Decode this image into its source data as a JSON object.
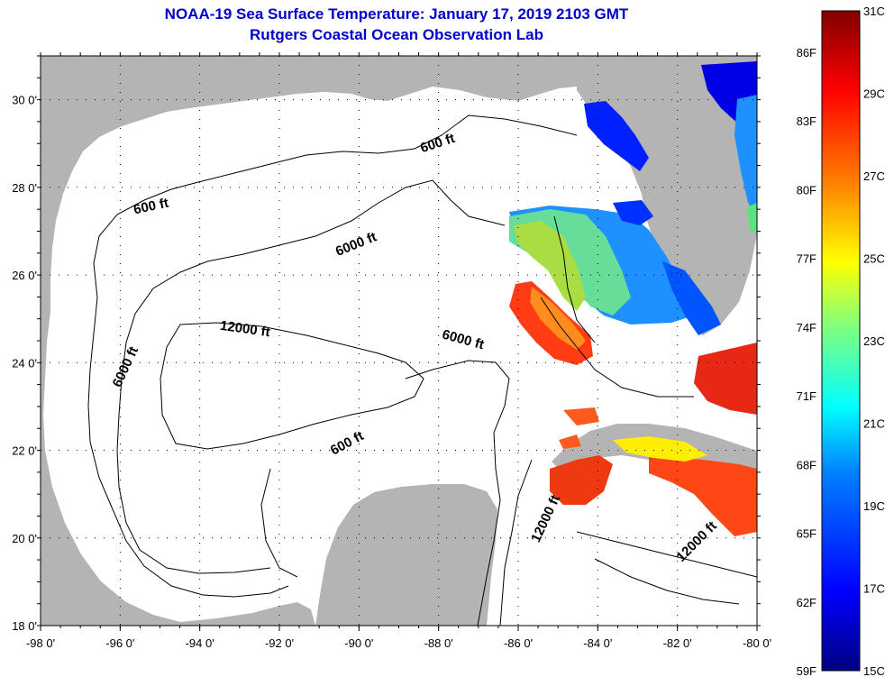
{
  "title": "NOAA-19 Sea Surface Temperature:  January 17, 2019 2103 GMT",
  "subtitle": "Rutgers Coastal Ocean Observation Lab",
  "map": {
    "lon_range": [
      -98,
      -80
    ],
    "lat_range": [
      18,
      31
    ],
    "lon_ticks": [
      "-98 0'",
      "-96 0'",
      "-94 0'",
      "-92 0'",
      "-90 0'",
      "-88 0'",
      "-86 0'",
      "-84 0'",
      "-82 0'",
      "-80 0'"
    ],
    "lat_ticks": [
      "18 0'",
      "20 0'",
      "22 0'",
      "24 0'",
      "26 0'",
      "28 0'",
      "30 0'"
    ],
    "land_color": "#b4b4b4",
    "ocean_color": "#ffffff",
    "grid": "dotted",
    "contour_labels": [
      "600 ft",
      "6000 ft",
      "12000 ft",
      "600 ft",
      "6000 ft",
      "6000 ft",
      "600 ft",
      "12000 ft",
      "12000 ft"
    ]
  },
  "colorbar": {
    "celsius": [
      "31C",
      "29C",
      "27C",
      "25C",
      "23C",
      "21C",
      "19C",
      "17C",
      "15C"
    ],
    "fahrenheit": [
      "86F",
      "83F",
      "80F",
      "77F",
      "74F",
      "71F",
      "68F",
      "65F",
      "62F",
      "59F"
    ],
    "colors": [
      "#000080",
      "#0000ff",
      "#0080ff",
      "#00ffff",
      "#80ff80",
      "#ffff00",
      "#ff8000",
      "#ff0000",
      "#800000"
    ]
  }
}
